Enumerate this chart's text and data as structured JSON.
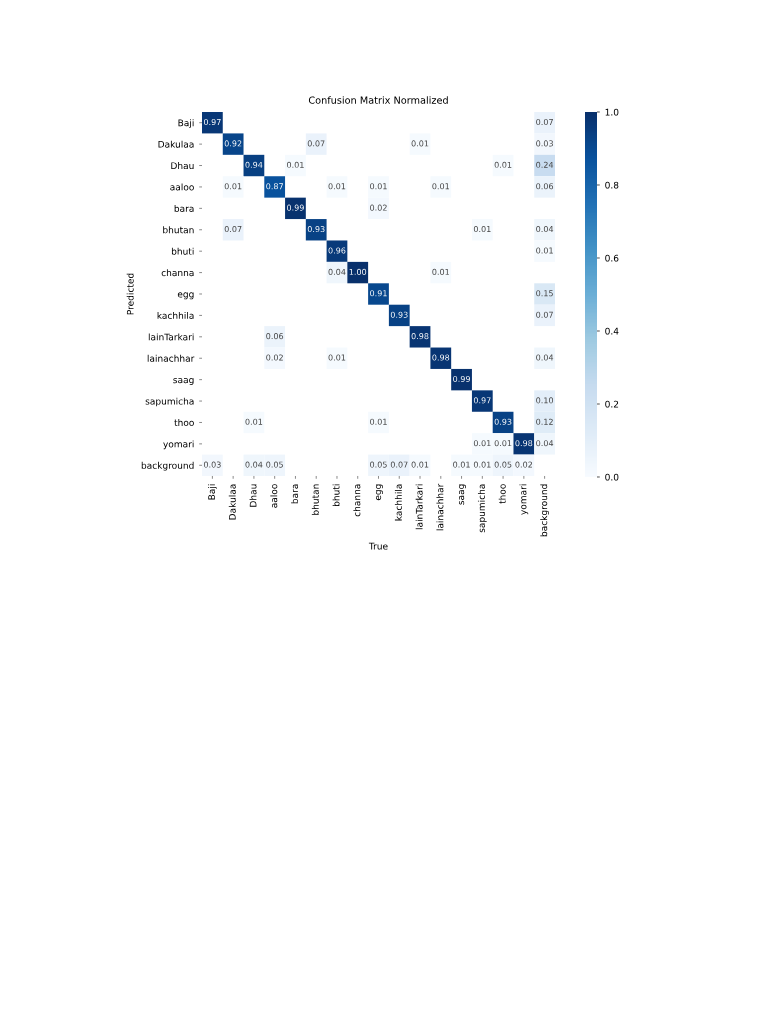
{
  "chart_data": {
    "type": "heatmap",
    "title": "Confusion Matrix Normalized",
    "xlabel": "True",
    "ylabel": "Predicted",
    "categories": [
      "Baji",
      "Dakulaa",
      "Dhau",
      "aaloo",
      "bara",
      "bhutan",
      "bhuti",
      "channa",
      "egg",
      "kachhila",
      "lainTarkari",
      "lainachhar",
      "saag",
      "sapumicha",
      "thoo",
      "yomari",
      "background"
    ],
    "y_categories": [
      "Baji",
      "Dakulaa",
      "Dhau",
      "aaloo",
      "bara",
      "bhutan",
      "bhuti",
      "channa",
      "egg",
      "kachhila",
      "lainTarkari",
      "lainachhar",
      "saag",
      "sapumicha",
      "thoo",
      "yomari",
      "background"
    ],
    "cells": [
      [
        0.97,
        null,
        null,
        null,
        null,
        null,
        null,
        null,
        null,
        null,
        null,
        null,
        null,
        null,
        null,
        null,
        0.07
      ],
      [
        null,
        0.92,
        null,
        null,
        null,
        0.07,
        null,
        null,
        null,
        null,
        0.01,
        null,
        null,
        null,
        null,
        null,
        0.03
      ],
      [
        null,
        null,
        0.94,
        null,
        0.01,
        null,
        null,
        null,
        null,
        null,
        null,
        null,
        null,
        null,
        0.01,
        null,
        0.24
      ],
      [
        null,
        0.01,
        null,
        0.87,
        null,
        null,
        0.01,
        null,
        0.01,
        null,
        null,
        0.01,
        null,
        null,
        null,
        null,
        0.06
      ],
      [
        null,
        null,
        null,
        null,
        0.99,
        null,
        null,
        null,
        0.02,
        null,
        null,
        null,
        null,
        null,
        null,
        null,
        null
      ],
      [
        null,
        0.07,
        null,
        null,
        null,
        0.93,
        null,
        null,
        null,
        null,
        null,
        null,
        null,
        0.01,
        null,
        null,
        0.04
      ],
      [
        null,
        null,
        null,
        null,
        null,
        null,
        0.96,
        null,
        null,
        null,
        null,
        null,
        null,
        null,
        null,
        null,
        0.01
      ],
      [
        null,
        null,
        null,
        null,
        null,
        null,
        0.04,
        1.0,
        null,
        null,
        null,
        0.01,
        null,
        null,
        null,
        null,
        null
      ],
      [
        null,
        null,
        null,
        null,
        null,
        null,
        null,
        null,
        0.91,
        null,
        null,
        null,
        null,
        null,
        null,
        null,
        0.15
      ],
      [
        null,
        null,
        null,
        null,
        null,
        null,
        null,
        null,
        null,
        0.93,
        null,
        null,
        null,
        null,
        null,
        null,
        0.07
      ],
      [
        null,
        null,
        null,
        0.06,
        null,
        null,
        null,
        null,
        null,
        null,
        0.98,
        null,
        null,
        null,
        null,
        null,
        null
      ],
      [
        null,
        null,
        null,
        0.02,
        null,
        null,
        0.01,
        null,
        null,
        null,
        null,
        0.98,
        null,
        null,
        null,
        null,
        0.04
      ],
      [
        null,
        null,
        null,
        null,
        null,
        null,
        null,
        null,
        null,
        null,
        null,
        null,
        0.99,
        null,
        null,
        null,
        null
      ],
      [
        null,
        null,
        null,
        null,
        null,
        null,
        null,
        null,
        null,
        null,
        null,
        null,
        null,
        0.97,
        null,
        null,
        0.1
      ],
      [
        null,
        null,
        0.01,
        null,
        null,
        null,
        null,
        null,
        0.01,
        null,
        null,
        null,
        null,
        null,
        0.93,
        null,
        0.12
      ],
      [
        null,
        null,
        null,
        null,
        null,
        null,
        null,
        null,
        null,
        null,
        null,
        null,
        null,
        0.01,
        0.01,
        0.98,
        0.04
      ],
      [
        0.03,
        null,
        0.04,
        0.05,
        null,
        null,
        null,
        null,
        0.05,
        0.07,
        0.01,
        null,
        0.01,
        0.01,
        0.05,
        0.02,
        null
      ]
    ],
    "cell_labels": [
      [
        "0.97",
        null,
        null,
        null,
        null,
        null,
        null,
        null,
        null,
        null,
        null,
        null,
        null,
        null,
        null,
        null,
        "0.07"
      ],
      [
        null,
        "0.92",
        null,
        null,
        null,
        "0.07",
        null,
        null,
        null,
        null,
        "0.01",
        null,
        null,
        null,
        null,
        null,
        "0.03"
      ],
      [
        null,
        null,
        "0.94",
        null,
        "0.01",
        null,
        null,
        null,
        null,
        null,
        null,
        null,
        null,
        null,
        "0.01",
        null,
        "0.24"
      ],
      [
        null,
        "0.01",
        null,
        "0.87",
        null,
        null,
        "0.01",
        null,
        "0.01",
        null,
        null,
        "0.01",
        null,
        null,
        null,
        null,
        "0.06"
      ],
      [
        null,
        null,
        null,
        null,
        "0.99",
        null,
        null,
        null,
        "0.02",
        null,
        null,
        null,
        null,
        null,
        null,
        null,
        null
      ],
      [
        null,
        "0.07",
        null,
        null,
        null,
        "0.93",
        null,
        null,
        null,
        null,
        null,
        null,
        null,
        "0.01",
        null,
        null,
        "0.04"
      ],
      [
        null,
        null,
        null,
        null,
        null,
        null,
        "0.96",
        null,
        null,
        null,
        null,
        null,
        null,
        null,
        null,
        null,
        "0.01"
      ],
      [
        null,
        null,
        null,
        null,
        null,
        null,
        "0.04",
        "1.00",
        null,
        null,
        null,
        "0.01",
        null,
        null,
        null,
        null,
        null
      ],
      [
        null,
        null,
        null,
        null,
        null,
        null,
        null,
        null,
        "0.91",
        null,
        null,
        null,
        null,
        null,
        null,
        null,
        "0.15"
      ],
      [
        null,
        null,
        null,
        null,
        null,
        null,
        null,
        null,
        null,
        "0.93",
        null,
        null,
        null,
        null,
        null,
        null,
        "0.07"
      ],
      [
        null,
        null,
        null,
        "0.06",
        null,
        null,
        null,
        null,
        null,
        null,
        "0.98",
        null,
        null,
        null,
        null,
        null,
        null
      ],
      [
        null,
        null,
        null,
        "0.02",
        null,
        null,
        "0.01",
        null,
        null,
        null,
        null,
        "0.98",
        null,
        null,
        null,
        null,
        "0.04"
      ],
      [
        null,
        null,
        null,
        null,
        null,
        null,
        null,
        null,
        null,
        null,
        null,
        null,
        "0.99",
        null,
        null,
        null,
        null
      ],
      [
        null,
        null,
        null,
        null,
        null,
        null,
        null,
        null,
        null,
        null,
        null,
        null,
        null,
        "0.97",
        null,
        null,
        "0.10"
      ],
      [
        null,
        null,
        "0.01",
        null,
        null,
        null,
        null,
        null,
        "0.01",
        null,
        null,
        null,
        null,
        null,
        "0.93",
        null,
        "0.12"
      ],
      [
        null,
        null,
        null,
        null,
        null,
        null,
        null,
        null,
        null,
        null,
        null,
        null,
        null,
        "0.01",
        "0.01",
        "0.98",
        "0.04"
      ],
      [
        "0.03",
        null,
        "0.04",
        "0.05",
        null,
        null,
        null,
        null,
        "0.05",
        "0.07",
        "0.01",
        null,
        "0.01",
        "0.01",
        "0.05",
        "0.02",
        null
      ]
    ],
    "clim": [
      0,
      1
    ],
    "cticks": [
      {
        "value": 0,
        "label": "0.0"
      },
      {
        "value": 0.2,
        "label": "0.2"
      },
      {
        "value": 0.4,
        "label": "0.4"
      },
      {
        "value": 0.6,
        "label": "0.6"
      },
      {
        "value": 0.8,
        "label": "0.8"
      },
      {
        "value": 1,
        "label": "1.0"
      }
    ]
  }
}
